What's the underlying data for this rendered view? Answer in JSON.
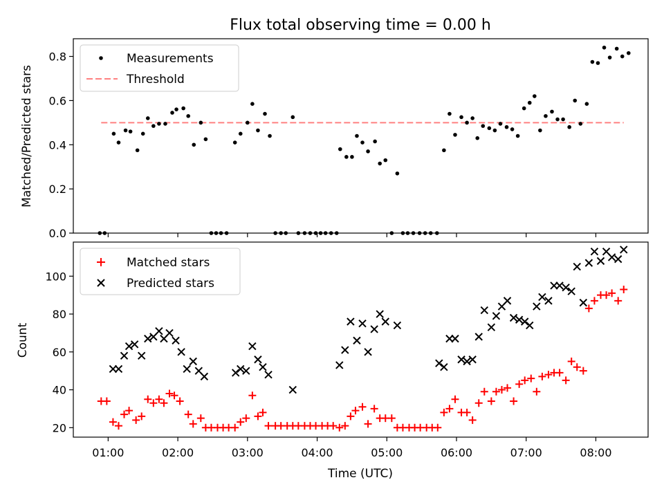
{
  "title": "Flux total observing time = 0.00 h",
  "chart_data": [
    {
      "type": "scatter",
      "ylabel": "Matched/Predicted stars",
      "ylim": [
        0,
        0.88
      ],
      "xlim": [
        0.5,
        8.75
      ],
      "yticks": [
        0.0,
        0.2,
        0.4,
        0.6,
        0.8
      ],
      "ytick_labels": [
        "0.0",
        "0.2",
        "0.4",
        "0.6",
        "0.8"
      ],
      "legend_position": "top-left",
      "legend": [
        {
          "label": "Measurements",
          "marker": "dot",
          "color": "#000000"
        },
        {
          "label": "Threshold",
          "marker": "dashed-line",
          "color": "#ff8080"
        }
      ],
      "threshold": {
        "y": 0.5,
        "x_start": 0.9,
        "x_end": 8.4
      },
      "series": [
        {
          "name": "Measurements",
          "color": "#000000",
          "points": [
            [
              0.88,
              0.0
            ],
            [
              0.95,
              0.0
            ],
            [
              1.08,
              0.45
            ],
            [
              1.15,
              0.41
            ],
            [
              1.25,
              0.465
            ],
            [
              1.32,
              0.46
            ],
            [
              1.42,
              0.375
            ],
            [
              1.5,
              0.45
            ],
            [
              1.57,
              0.52
            ],
            [
              1.65,
              0.485
            ],
            [
              1.73,
              0.495
            ],
            [
              1.82,
              0.495
            ],
            [
              1.92,
              0.545
            ],
            [
              1.98,
              0.56
            ],
            [
              2.08,
              0.565
            ],
            [
              2.15,
              0.53
            ],
            [
              2.23,
              0.4
            ],
            [
              2.33,
              0.5
            ],
            [
              2.4,
              0.425
            ],
            [
              2.48,
              0.0
            ],
            [
              2.55,
              0.0
            ],
            [
              2.62,
              0.0
            ],
            [
              2.7,
              0.0
            ],
            [
              2.82,
              0.41
            ],
            [
              2.9,
              0.45
            ],
            [
              3.0,
              0.5
            ],
            [
              3.07,
              0.585
            ],
            [
              3.15,
              0.465
            ],
            [
              3.25,
              0.54
            ],
            [
              3.32,
              0.44
            ],
            [
              3.4,
              0.0
            ],
            [
              3.48,
              0.0
            ],
            [
              3.55,
              0.0
            ],
            [
              3.65,
              0.525
            ],
            [
              3.73,
              0.0
            ],
            [
              3.82,
              0.0
            ],
            [
              3.9,
              0.0
            ],
            [
              3.98,
              0.0
            ],
            [
              4.05,
              0.0
            ],
            [
              4.12,
              0.0
            ],
            [
              4.2,
              0.0
            ],
            [
              4.28,
              0.0
            ],
            [
              4.33,
              0.38
            ],
            [
              4.42,
              0.345
            ],
            [
              4.5,
              0.345
            ],
            [
              4.57,
              0.44
            ],
            [
              4.65,
              0.41
            ],
            [
              4.73,
              0.37
            ],
            [
              4.83,
              0.415
            ],
            [
              4.9,
              0.315
            ],
            [
              4.98,
              0.33
            ],
            [
              5.07,
              0.0
            ],
            [
              5.15,
              0.27
            ],
            [
              5.23,
              0.0
            ],
            [
              5.3,
              0.0
            ],
            [
              5.38,
              0.0
            ],
            [
              5.47,
              0.0
            ],
            [
              5.55,
              0.0
            ],
            [
              5.63,
              0.0
            ],
            [
              5.72,
              0.0
            ],
            [
              5.82,
              0.375
            ],
            [
              5.9,
              0.54
            ],
            [
              5.98,
              0.445
            ],
            [
              6.07,
              0.525
            ],
            [
              6.15,
              0.5
            ],
            [
              6.23,
              0.52
            ],
            [
              6.3,
              0.43
            ],
            [
              6.38,
              0.485
            ],
            [
              6.47,
              0.475
            ],
            [
              6.55,
              0.465
            ],
            [
              6.63,
              0.495
            ],
            [
              6.72,
              0.48
            ],
            [
              6.8,
              0.47
            ],
            [
              6.88,
              0.44
            ],
            [
              6.97,
              0.565
            ],
            [
              7.05,
              0.59
            ],
            [
              7.12,
              0.62
            ],
            [
              7.2,
              0.465
            ],
            [
              7.28,
              0.53
            ],
            [
              7.37,
              0.55
            ],
            [
              7.45,
              0.515
            ],
            [
              7.53,
              0.515
            ],
            [
              7.62,
              0.48
            ],
            [
              7.7,
              0.6
            ],
            [
              7.78,
              0.495
            ],
            [
              7.87,
              0.585
            ],
            [
              7.95,
              0.775
            ],
            [
              8.03,
              0.77
            ],
            [
              8.12,
              0.84
            ],
            [
              8.2,
              0.795
            ],
            [
              8.3,
              0.835
            ],
            [
              8.38,
              0.8
            ],
            [
              8.47,
              0.815
            ]
          ]
        }
      ]
    },
    {
      "type": "scatter",
      "ylabel": "Count",
      "xlabel": "Time (UTC)",
      "ylim": [
        15,
        118
      ],
      "xlim": [
        0.5,
        8.75
      ],
      "xticks": [
        1,
        2,
        3,
        4,
        5,
        6,
        7,
        8
      ],
      "xtick_labels": [
        "01:00",
        "02:00",
        "03:00",
        "04:00",
        "05:00",
        "06:00",
        "07:00",
        "08:00"
      ],
      "yticks": [
        20,
        40,
        60,
        80,
        100
      ],
      "ytick_labels": [
        "20",
        "40",
        "60",
        "80",
        "100"
      ],
      "legend_position": "top-left",
      "legend": [
        {
          "label": "Matched stars",
          "marker": "plus",
          "color": "#ff0000"
        },
        {
          "label": "Predicted stars",
          "marker": "x",
          "color": "#000000"
        }
      ],
      "series": [
        {
          "name": "Matched stars",
          "marker": "plus",
          "color": "#ff0000",
          "points": [
            [
              0.9,
              34
            ],
            [
              0.98,
              34
            ],
            [
              1.07,
              23
            ],
            [
              1.15,
              21
            ],
            [
              1.23,
              27
            ],
            [
              1.3,
              29
            ],
            [
              1.4,
              24
            ],
            [
              1.48,
              26
            ],
            [
              1.57,
              35
            ],
            [
              1.65,
              33
            ],
            [
              1.73,
              35
            ],
            [
              1.8,
              33
            ],
            [
              1.88,
              38
            ],
            [
              1.95,
              37
            ],
            [
              2.03,
              34
            ],
            [
              2.15,
              27
            ],
            [
              2.22,
              22
            ],
            [
              2.33,
              25
            ],
            [
              2.4,
              20
            ],
            [
              2.48,
              20
            ],
            [
              2.57,
              20
            ],
            [
              2.65,
              20
            ],
            [
              2.73,
              20
            ],
            [
              2.82,
              20
            ],
            [
              2.9,
              23
            ],
            [
              2.98,
              25
            ],
            [
              3.07,
              37
            ],
            [
              3.15,
              26
            ],
            [
              3.22,
              28
            ],
            [
              3.3,
              21
            ],
            [
              3.4,
              21
            ],
            [
              3.48,
              21
            ],
            [
              3.57,
              21
            ],
            [
              3.65,
              21
            ],
            [
              3.73,
              21
            ],
            [
              3.82,
              21
            ],
            [
              3.9,
              21
            ],
            [
              3.98,
              21
            ],
            [
              4.07,
              21
            ],
            [
              4.15,
              21
            ],
            [
              4.23,
              21
            ],
            [
              4.32,
              20
            ],
            [
              4.4,
              21
            ],
            [
              4.48,
              26
            ],
            [
              4.55,
              29
            ],
            [
              4.65,
              31
            ],
            [
              4.73,
              22
            ],
            [
              4.82,
              30
            ],
            [
              4.9,
              25
            ],
            [
              4.98,
              25
            ],
            [
              5.07,
              25
            ],
            [
              5.15,
              20
            ],
            [
              5.23,
              20
            ],
            [
              5.32,
              20
            ],
            [
              5.4,
              20
            ],
            [
              5.48,
              20
            ],
            [
              5.57,
              20
            ],
            [
              5.65,
              20
            ],
            [
              5.73,
              20
            ],
            [
              5.82,
              28
            ],
            [
              5.9,
              30
            ],
            [
              5.98,
              35
            ],
            [
              6.07,
              28
            ],
            [
              6.15,
              28
            ],
            [
              6.23,
              24
            ],
            [
              6.32,
              33
            ],
            [
              6.4,
              39
            ],
            [
              6.5,
              34
            ],
            [
              6.57,
              39
            ],
            [
              6.65,
              40
            ],
            [
              6.73,
              41
            ],
            [
              6.82,
              34
            ],
            [
              6.9,
              43
            ],
            [
              6.98,
              45
            ],
            [
              7.07,
              46
            ],
            [
              7.15,
              39
            ],
            [
              7.23,
              47
            ],
            [
              7.32,
              48
            ],
            [
              7.4,
              49
            ],
            [
              7.48,
              49
            ],
            [
              7.57,
              45
            ],
            [
              7.65,
              55
            ],
            [
              7.73,
              52
            ],
            [
              7.82,
              50
            ],
            [
              7.9,
              83
            ],
            [
              7.98,
              87
            ],
            [
              8.07,
              90
            ],
            [
              8.15,
              90
            ],
            [
              8.23,
              91
            ],
            [
              8.32,
              87
            ],
            [
              8.4,
              93
            ]
          ]
        },
        {
          "name": "Predicted stars",
          "marker": "x",
          "color": "#000000",
          "points": [
            [
              1.07,
              51
            ],
            [
              1.15,
              51
            ],
            [
              1.23,
              58
            ],
            [
              1.3,
              63
            ],
            [
              1.38,
              64
            ],
            [
              1.48,
              58
            ],
            [
              1.57,
              67
            ],
            [
              1.65,
              68
            ],
            [
              1.73,
              71
            ],
            [
              1.8,
              67
            ],
            [
              1.88,
              70
            ],
            [
              1.97,
              66
            ],
            [
              2.05,
              60
            ],
            [
              2.13,
              51
            ],
            [
              2.22,
              55
            ],
            [
              2.3,
              50
            ],
            [
              2.38,
              47
            ],
            [
              2.83,
              49
            ],
            [
              2.9,
              51
            ],
            [
              2.98,
              50
            ],
            [
              3.07,
              63
            ],
            [
              3.15,
              56
            ],
            [
              3.22,
              52
            ],
            [
              3.3,
              48
            ],
            [
              3.65,
              40
            ],
            [
              4.32,
              53
            ],
            [
              4.4,
              61
            ],
            [
              4.48,
              76
            ],
            [
              4.57,
              66
            ],
            [
              4.65,
              75
            ],
            [
              4.73,
              60
            ],
            [
              4.82,
              72
            ],
            [
              4.9,
              80
            ],
            [
              4.98,
              76
            ],
            [
              5.15,
              74
            ],
            [
              5.75,
              54
            ],
            [
              5.82,
              52
            ],
            [
              5.9,
              67
            ],
            [
              5.98,
              67
            ],
            [
              6.07,
              56
            ],
            [
              6.15,
              55
            ],
            [
              6.23,
              56
            ],
            [
              6.32,
              68
            ],
            [
              6.4,
              82
            ],
            [
              6.5,
              73
            ],
            [
              6.57,
              79
            ],
            [
              6.65,
              84
            ],
            [
              6.73,
              87
            ],
            [
              6.82,
              78
            ],
            [
              6.9,
              77
            ],
            [
              6.98,
              76
            ],
            [
              7.05,
              74
            ],
            [
              7.15,
              84
            ],
            [
              7.23,
              89
            ],
            [
              7.32,
              87
            ],
            [
              7.4,
              95
            ],
            [
              7.48,
              95
            ],
            [
              7.57,
              94
            ],
            [
              7.65,
              92
            ],
            [
              7.73,
              105
            ],
            [
              7.82,
              86
            ],
            [
              7.9,
              107
            ],
            [
              7.98,
              113
            ],
            [
              8.07,
              108
            ],
            [
              8.15,
              113
            ],
            [
              8.23,
              110
            ],
            [
              8.32,
              109
            ],
            [
              8.4,
              114
            ]
          ]
        }
      ]
    }
  ]
}
